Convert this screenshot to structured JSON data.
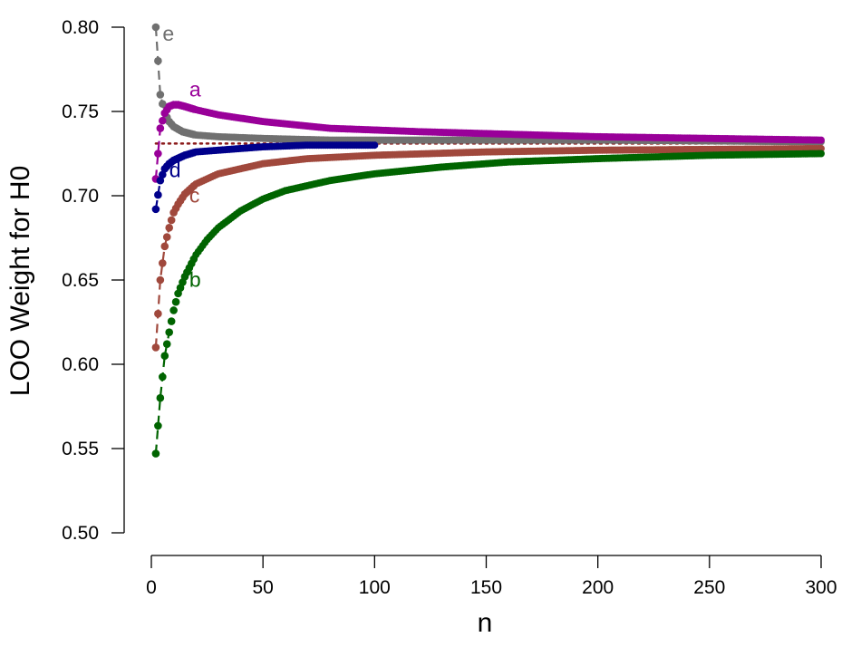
{
  "chart_data": {
    "type": "scatter",
    "title": "",
    "xlabel": "n",
    "ylabel": "LOO Weight for H0",
    "xlim": [
      0,
      300
    ],
    "ylim": [
      0.5,
      0.8
    ],
    "xticks": [
      0,
      50,
      100,
      150,
      200,
      250,
      300
    ],
    "yticks": [
      "0.50",
      "0.55",
      "0.60",
      "0.65",
      "0.70",
      "0.75",
      "0.80"
    ],
    "x_tick_labels": [
      "0",
      "50",
      "100",
      "150",
      "200",
      "250",
      "300"
    ],
    "grid": false,
    "legend": "none",
    "reference_line": {
      "y": 0.731,
      "style": "dotted",
      "color": "#8b1a1a"
    },
    "series": [
      {
        "name": "e",
        "color": "#707070",
        "label_position": [
          5,
          0.792
        ],
        "points": [
          [
            2,
            0.8
          ],
          [
            4,
            0.76
          ],
          [
            6,
            0.749
          ],
          [
            8,
            0.744
          ],
          [
            10,
            0.741
          ],
          [
            14,
            0.738
          ],
          [
            20,
            0.736
          ],
          [
            30,
            0.735
          ],
          [
            50,
            0.734
          ],
          [
            80,
            0.733
          ],
          [
            120,
            0.733
          ],
          [
            200,
            0.733
          ],
          [
            300,
            0.732
          ]
        ]
      },
      {
        "name": "a",
        "color": "#990099",
        "label_position": [
          17,
          0.759
        ],
        "points": [
          [
            2,
            0.71
          ],
          [
            4,
            0.74
          ],
          [
            6,
            0.749
          ],
          [
            8,
            0.753
          ],
          [
            10,
            0.754
          ],
          [
            12,
            0.754
          ],
          [
            15,
            0.753
          ],
          [
            20,
            0.751
          ],
          [
            30,
            0.748
          ],
          [
            50,
            0.744
          ],
          [
            80,
            0.74
          ],
          [
            120,
            0.738
          ],
          [
            200,
            0.735
          ],
          [
            300,
            0.733
          ]
        ]
      },
      {
        "name": "d",
        "color": "#00008b",
        "label_position": [
          8,
          0.711
        ],
        "points": [
          [
            2,
            0.692
          ],
          [
            4,
            0.709
          ],
          [
            6,
            0.716
          ],
          [
            8,
            0.719
          ],
          [
            10,
            0.721
          ],
          [
            15,
            0.724
          ],
          [
            20,
            0.726
          ],
          [
            30,
            0.727
          ],
          [
            50,
            0.729
          ],
          [
            70,
            0.73
          ],
          [
            100,
            0.73
          ]
        ]
      },
      {
        "name": "c",
        "color": "#a0483c",
        "label_position": [
          17,
          0.696
        ],
        "points": [
          [
            2,
            0.61
          ],
          [
            4,
            0.65
          ],
          [
            6,
            0.67
          ],
          [
            8,
            0.681
          ],
          [
            10,
            0.69
          ],
          [
            12,
            0.695
          ],
          [
            15,
            0.701
          ],
          [
            20,
            0.707
          ],
          [
            25,
            0.71
          ],
          [
            30,
            0.713
          ],
          [
            40,
            0.716
          ],
          [
            50,
            0.719
          ],
          [
            70,
            0.722
          ],
          [
            100,
            0.724
          ],
          [
            150,
            0.726
          ],
          [
            200,
            0.727
          ],
          [
            300,
            0.728
          ]
        ]
      },
      {
        "name": "b",
        "color": "#006400",
        "label_position": [
          17,
          0.646
        ],
        "points": [
          [
            2,
            0.547
          ],
          [
            4,
            0.58
          ],
          [
            6,
            0.605
          ],
          [
            8,
            0.619
          ],
          [
            10,
            0.632
          ],
          [
            12,
            0.642
          ],
          [
            15,
            0.652
          ],
          [
            20,
            0.665
          ],
          [
            25,
            0.674
          ],
          [
            30,
            0.681
          ],
          [
            40,
            0.691
          ],
          [
            50,
            0.698
          ],
          [
            60,
            0.703
          ],
          [
            80,
            0.709
          ],
          [
            100,
            0.713
          ],
          [
            130,
            0.717
          ],
          [
            160,
            0.72
          ],
          [
            200,
            0.722
          ],
          [
            250,
            0.724
          ],
          [
            300,
            0.725
          ]
        ]
      }
    ]
  }
}
